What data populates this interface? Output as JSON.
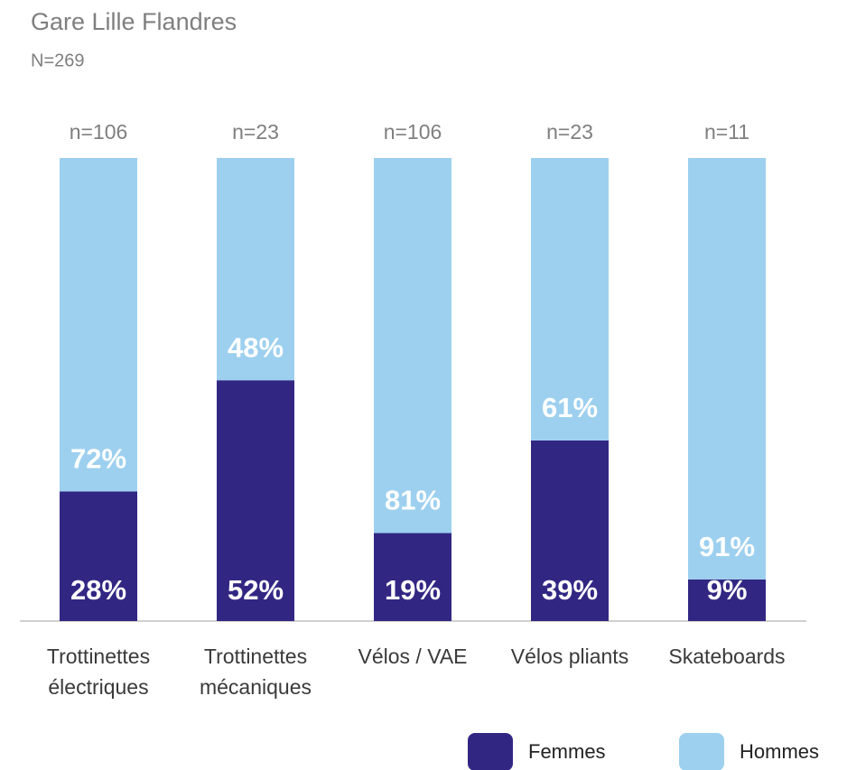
{
  "chart_data": {
    "type": "stacked_bar",
    "title": "Gare Lille Flandres",
    "subtitle": "N=269",
    "categories": [
      "Trottinettes électriques",
      "Trottinettes mécaniques",
      "Vélos / VAE",
      "Vélos pliants",
      "Skateboards"
    ],
    "n_labels": [
      "n=106",
      "n=23",
      "n=106",
      "n=23",
      "n=11"
    ],
    "series": [
      {
        "name": "Femmes",
        "color": "#312783",
        "values": [
          28,
          52,
          19,
          39,
          9
        ],
        "value_labels": [
          "28%",
          "52%",
          "19%",
          "39%",
          "9%"
        ]
      },
      {
        "name": "Hommes",
        "color": "#9dd0ef",
        "values": [
          72,
          48,
          81,
          61,
          91
        ],
        "value_labels": [
          "72%",
          "48%",
          "81%",
          "61%",
          "91%"
        ]
      }
    ],
    "ylim": [
      0,
      100
    ],
    "legend": "bottom-right"
  }
}
